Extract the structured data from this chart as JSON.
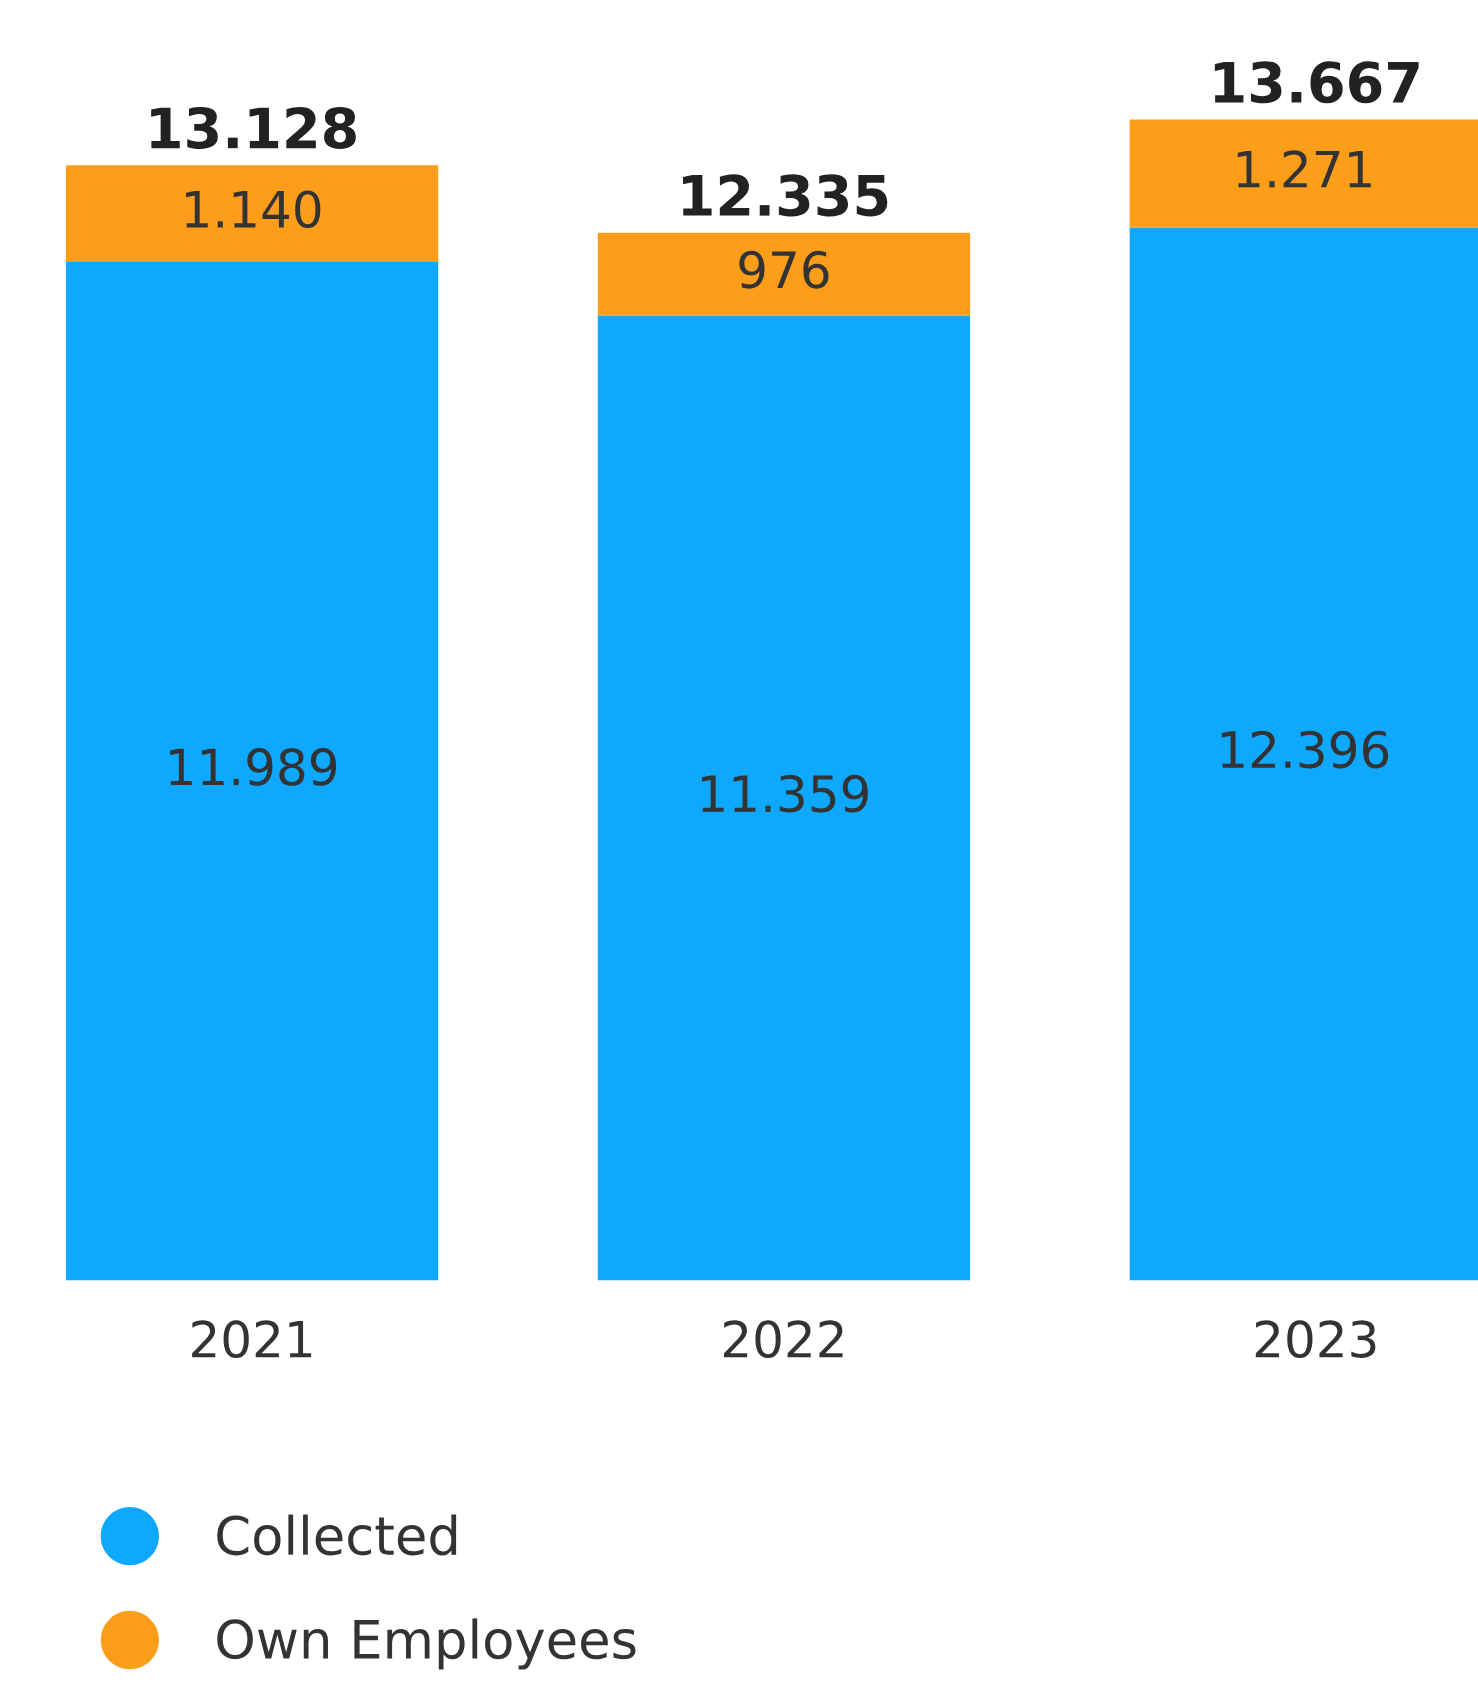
{
  "chart_data": {
    "type": "bar",
    "stacked": true,
    "categories": [
      "2021",
      "2022",
      "2023"
    ],
    "series": [
      {
        "name": "Collected",
        "color": "#0ea8fd",
        "values": [
          11989,
          11359,
          12396
        ],
        "value_labels": [
          "11.989",
          "11.359",
          "12.396"
        ]
      },
      {
        "name": "Own Employees",
        "color": "#fd9e1b",
        "values": [
          1140,
          976,
          1271
        ],
        "value_labels": [
          "1.140",
          "976",
          "1.271"
        ]
      }
    ],
    "totals": [
      "13.128",
      "12.335",
      "13.667"
    ],
    "legend": "bottom left",
    "grid": false
  }
}
